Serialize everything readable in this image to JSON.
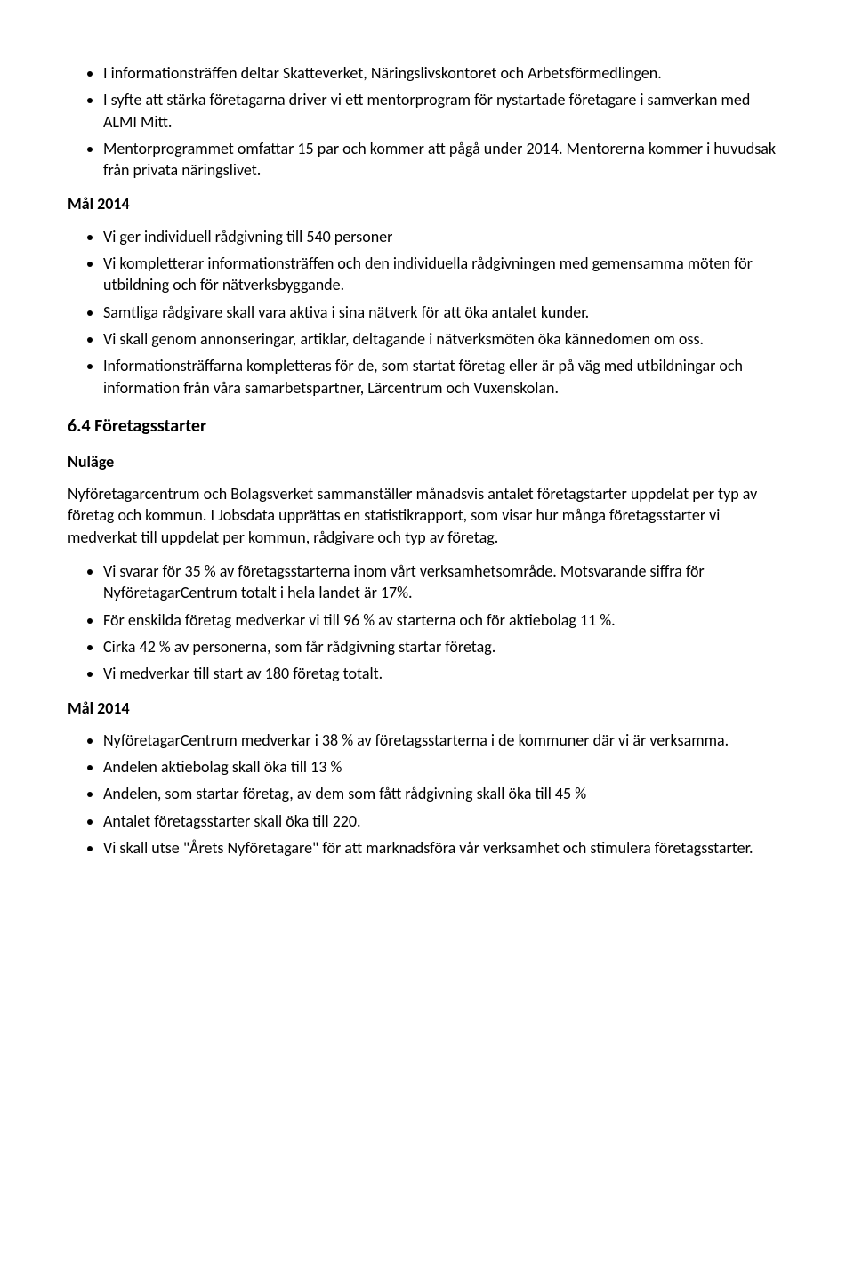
{
  "bullets1": {
    "item0": "I informationsträffen deltar Skatteverket, Näringslivskontoret och Arbetsförmedlingen.",
    "item1": "I syfte att stärka företagarna driver vi ett mentorprogram för nystartade företagare i samverkan med ALMI Mitt.",
    "item2": "Mentorprogrammet omfattar 15 par och kommer att pågå under 2014. Mentorerna kommer i huvudsak från privata näringslivet."
  },
  "mal2014_a": {
    "heading": "Mål 2014",
    "item0": "Vi ger individuell rådgivning till 540 personer",
    "item1": "Vi kompletterar informationsträffen och den individuella rådgivningen med gemensamma möten för utbildning och för nätverksbyggande.",
    "item2": "Samtliga rådgivare skall vara aktiva i sina nätverk för att öka antalet kunder.",
    "item3": "Vi skall genom annonseringar, artiklar, deltagande i nätverksmöten öka kännedomen om oss.",
    "item4": "Informationsträffarna kompletteras för de, som startat företag eller är på väg med utbildningar och information från våra samarbetspartner, Lärcentrum och Vuxenskolan."
  },
  "section64": {
    "heading": "6.4 Företagsstarter",
    "nulage_heading": "Nuläge",
    "para": "Nyföretagarcentrum och Bolagsverket sammanställer månadsvis antalet företagstarter uppdelat per typ av företag och kommun. I Jobsdata upprättas en statistikrapport, som visar hur många företagsstarter vi medverkat till uppdelat per kommun, rådgivare och typ av företag.",
    "item0": "Vi svarar för 35 % av företagsstarterna inom vårt verksamhetsområde. Motsvarande siffra för NyföretagarCentrum totalt i hela landet är 17%.",
    "item1": "För enskilda företag medverkar vi till 96 % av starterna och för aktiebolag 11 %.",
    "item2": "Cirka 42 % av personerna, som får rådgivning startar företag.",
    "item3": "Vi medverkar till start av 180 företag totalt."
  },
  "mal2014_b": {
    "heading": "Mål 2014",
    "item0": "NyföretagarCentrum medverkar i 38 % av företagsstarterna i de kommuner där vi är verksamma.",
    "item1": "Andelen aktiebolag skall öka till 13 %",
    "item2": "Andelen, som startar företag, av dem som fått rådgivning skall öka till 45 %",
    "item3": "Antalet företagsstarter skall öka till 220.",
    "item4": "Vi skall utse \"Årets Nyföretagare\" för att marknadsföra vår verksamhet och stimulera företagsstarter."
  }
}
